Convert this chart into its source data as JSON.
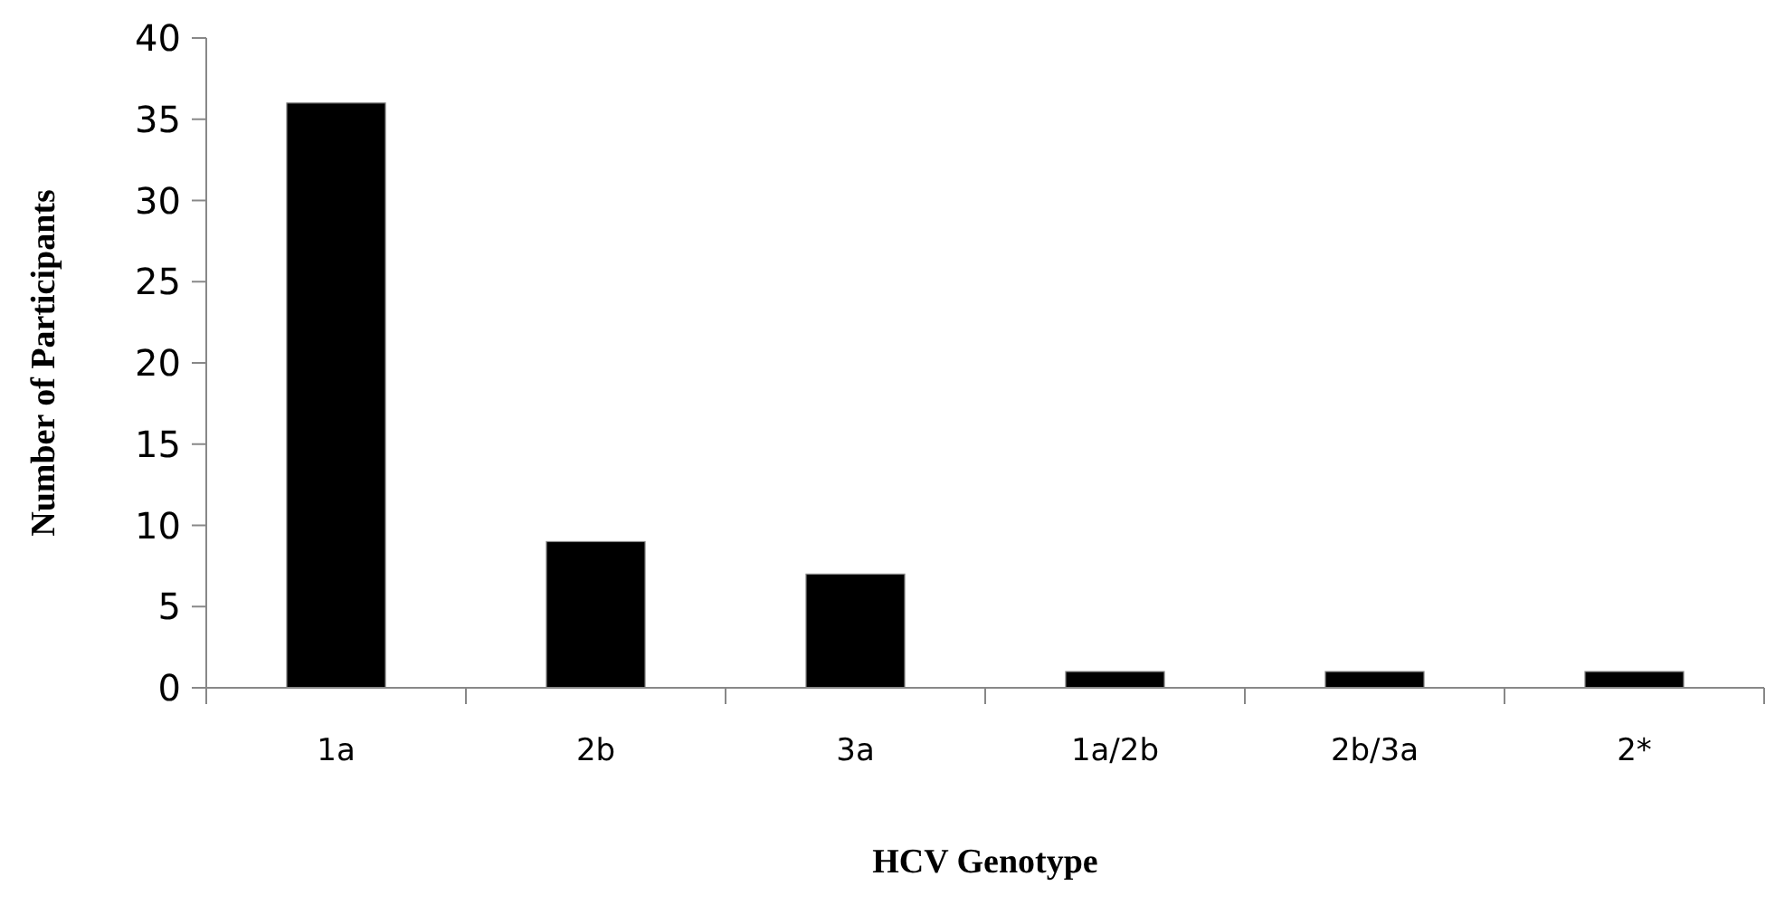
{
  "chart_data": {
    "type": "bar",
    "xlabel": "HCV Genotype",
    "ylabel": "Number of Participants",
    "categories": [
      "1a",
      "2b",
      "3a",
      "1a/2b",
      "2b/3a",
      "2*"
    ],
    "values": [
      36,
      9,
      7,
      1,
      1,
      1
    ],
    "color": "#000000",
    "ylim": [
      0,
      40
    ],
    "yticks": [
      0,
      5,
      10,
      15,
      20,
      25,
      30,
      35,
      40
    ],
    "grid": false
  }
}
